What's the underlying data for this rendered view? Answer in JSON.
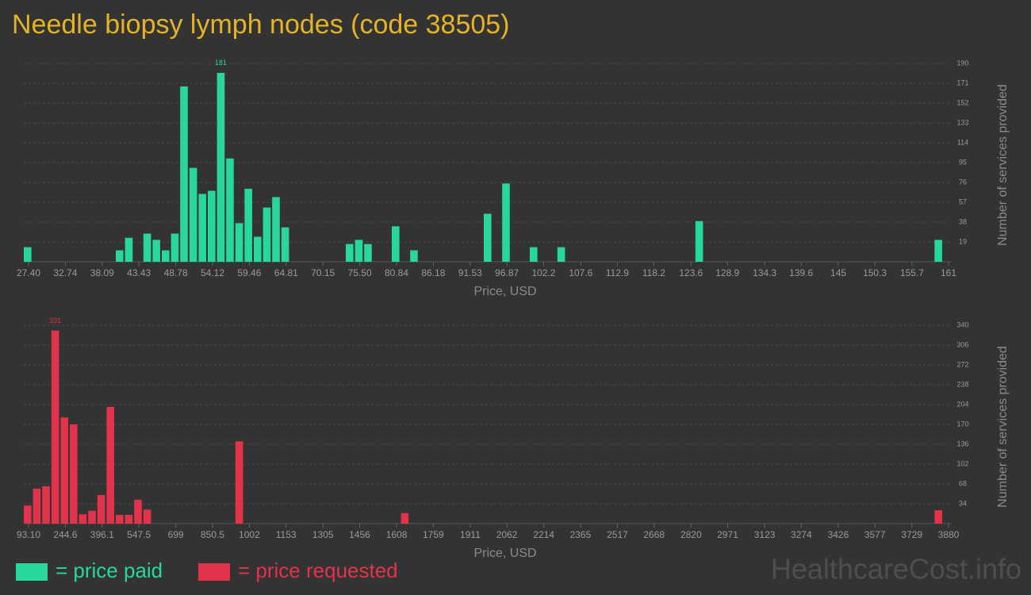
{
  "title": "Needle biopsy lymph nodes (code 38505)",
  "watermark": "HealthcareCost.info",
  "chart_data": [
    {
      "type": "bar",
      "x": [
        27.4,
        40.76,
        42.1,
        44.77,
        46.1,
        47.44,
        48.78,
        50.11,
        51.45,
        52.78,
        54.12,
        55.46,
        56.79,
        58.13,
        59.46,
        60.8,
        62.14,
        63.47,
        64.81,
        74.16,
        75.5,
        76.83,
        80.84,
        83.51,
        94.2,
        96.87,
        100.88,
        104.89,
        124.93,
        159.66
      ],
      "series": [
        {
          "name": "= price paid",
          "color": "#28d79b",
          "values": [
            14,
            11,
            23,
            27,
            21,
            11,
            27,
            168,
            90,
            65,
            68,
            181,
            99,
            37,
            70,
            24,
            52,
            62,
            33,
            17,
            21,
            17,
            34,
            11,
            46,
            75,
            14,
            14,
            39,
            21
          ]
        }
      ],
      "xlim": [
        27.4,
        161
      ],
      "xticks": [
        {
          "value": 27.4,
          "label": "27.40"
        },
        32.74,
        38.09,
        43.43,
        48.78,
        54.12,
        59.46,
        64.81,
        70.15,
        {
          "value": 75.5,
          "label": "75.50"
        },
        80.84,
        86.18,
        91.53,
        96.87,
        102.2,
        107.6,
        112.9,
        118.2,
        123.6,
        128.9,
        134.3,
        139.6,
        145,
        150.3,
        155.7,
        161
      ],
      "ylim": [
        0,
        190
      ],
      "yticks": [
        19,
        38,
        57,
        76,
        95,
        114,
        133,
        152,
        171,
        190
      ],
      "xlabel": "Price, USD",
      "ylabel": "Number of services provided",
      "grid": true
    },
    {
      "type": "bar",
      "x": [
        93.1,
        130.97,
        168.84,
        206.71,
        244.58,
        282.45,
        320.32,
        358.19,
        396.06,
        433.93,
        471.8,
        509.67,
        547.54,
        585.41,
        964.11,
        1645.77,
        3842.23
      ],
      "series": [
        {
          "name": "= price requested",
          "color": "#e2334a",
          "values": [
            31,
            60,
            64,
            331,
            182,
            170,
            16,
            22,
            49,
            200,
            15,
            15,
            41,
            24,
            141,
            18,
            23
          ]
        }
      ],
      "xlim": [
        93.1,
        3880
      ],
      "xticks": [
        {
          "value": 93.1,
          "label": "93.10"
        },
        244.6,
        396.1,
        547.5,
        699,
        850.5,
        1002,
        1153,
        1305,
        1456,
        1608,
        1759,
        1911,
        2062,
        2214,
        2365,
        2517,
        2668,
        2820,
        2971,
        3123,
        3274,
        3426,
        3577,
        3729,
        3880
      ],
      "ylim": [
        0,
        340
      ],
      "yticks": [
        34,
        68,
        102,
        136,
        170,
        204,
        238,
        272,
        306,
        340
      ],
      "xlabel": "Price, USD",
      "ylabel": "Number of services provided",
      "grid": true
    }
  ]
}
